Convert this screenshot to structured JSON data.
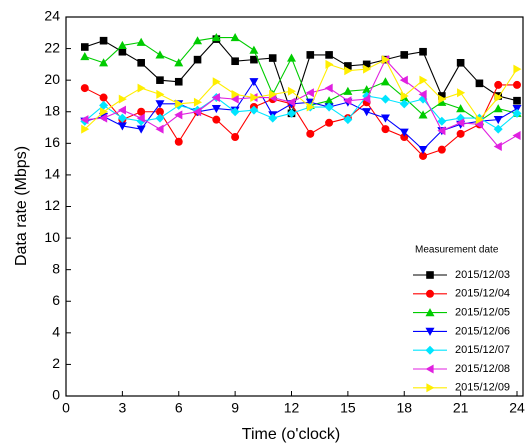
{
  "chart_data": {
    "type": "line",
    "x_label": "Time (o'clock)",
    "y_label": "Data rate (Mbps)",
    "legend_title": "Measurement date",
    "legend_position": "lower right",
    "x": [
      1,
      2,
      3,
      4,
      5,
      6,
      7,
      8,
      9,
      10,
      11,
      12,
      13,
      14,
      15,
      16,
      17,
      18,
      19,
      20,
      21,
      22,
      23,
      24
    ],
    "xlim": [
      0,
      24
    ],
    "xticks": [
      0,
      3,
      6,
      9,
      12,
      15,
      18,
      21,
      24
    ],
    "ylim": [
      0,
      24
    ],
    "yticks": [
      0,
      2,
      4,
      6,
      8,
      10,
      12,
      14,
      16,
      18,
      20,
      22,
      24
    ],
    "series": [
      {
        "name": "2015/12/03",
        "color": "#000000",
        "marker": "square",
        "values": [
          22.1,
          22.5,
          21.8,
          21.1,
          20.0,
          19.9,
          21.3,
          22.6,
          21.2,
          21.3,
          21.4,
          17.9,
          21.6,
          21.6,
          20.9,
          21.0,
          21.3,
          21.6,
          21.8,
          19.0,
          21.1,
          19.8,
          19.0,
          18.7
        ]
      },
      {
        "name": "2015/12/04",
        "color": "#ff0000",
        "marker": "circle",
        "values": [
          19.5,
          18.9,
          17.5,
          18.0,
          18.0,
          16.1,
          18.0,
          17.5,
          16.4,
          18.3,
          18.8,
          18.5,
          16.6,
          17.3,
          17.6,
          18.6,
          16.9,
          16.4,
          15.2,
          15.6,
          16.6,
          17.2,
          19.7,
          19.7
        ]
      },
      {
        "name": "2015/12/05",
        "color": "#00cc00",
        "marker": "triangle-up",
        "values": [
          21.5,
          21.1,
          22.2,
          22.4,
          21.6,
          21.1,
          22.5,
          22.7,
          22.7,
          21.9,
          19.1,
          21.4,
          18.4,
          18.7,
          19.3,
          19.4,
          19.9,
          18.9,
          17.8,
          18.6,
          18.2,
          17.4,
          18.2,
          17.9
        ]
      },
      {
        "name": "2015/12/06",
        "color": "#0000ff",
        "marker": "triangle-down",
        "values": [
          17.4,
          17.7,
          17.1,
          16.9,
          18.5,
          18.5,
          18.0,
          18.2,
          18.1,
          19.9,
          17.8,
          18.5,
          18.6,
          18.3,
          18.6,
          18.0,
          17.6,
          16.7,
          15.6,
          16.8,
          17.2,
          17.4,
          17.5,
          18.2
        ]
      },
      {
        "name": "2015/12/07",
        "color": "#00e5ff",
        "marker": "diamond",
        "values": [
          17.4,
          18.4,
          17.6,
          17.4,
          17.6,
          18.4,
          18.1,
          18.9,
          18.0,
          18.1,
          17.6,
          17.9,
          18.3,
          18.3,
          17.5,
          19.0,
          18.8,
          18.5,
          18.8,
          17.4,
          17.6,
          17.6,
          16.9,
          17.9
        ]
      },
      {
        "name": "2015/12/08",
        "color": "#e020e0",
        "marker": "triangle-left",
        "values": [
          17.5,
          17.6,
          18.1,
          17.6,
          16.9,
          17.8,
          18.0,
          18.9,
          18.8,
          18.9,
          18.9,
          18.6,
          19.2,
          19.5,
          18.7,
          18.8,
          21.3,
          20.0,
          19.1,
          16.8,
          17.3,
          17.2,
          15.8,
          16.5
        ]
      },
      {
        "name": "2015/12/09",
        "color": "#ffee00",
        "marker": "triangle-right",
        "values": [
          16.9,
          18.0,
          18.8,
          19.5,
          19.1,
          18.5,
          18.6,
          19.9,
          19.1,
          18.9,
          19.1,
          19.3,
          18.3,
          21.0,
          20.6,
          20.7,
          21.3,
          19.0,
          20.0,
          18.8,
          19.2,
          17.5,
          18.9,
          20.7
        ]
      }
    ]
  }
}
